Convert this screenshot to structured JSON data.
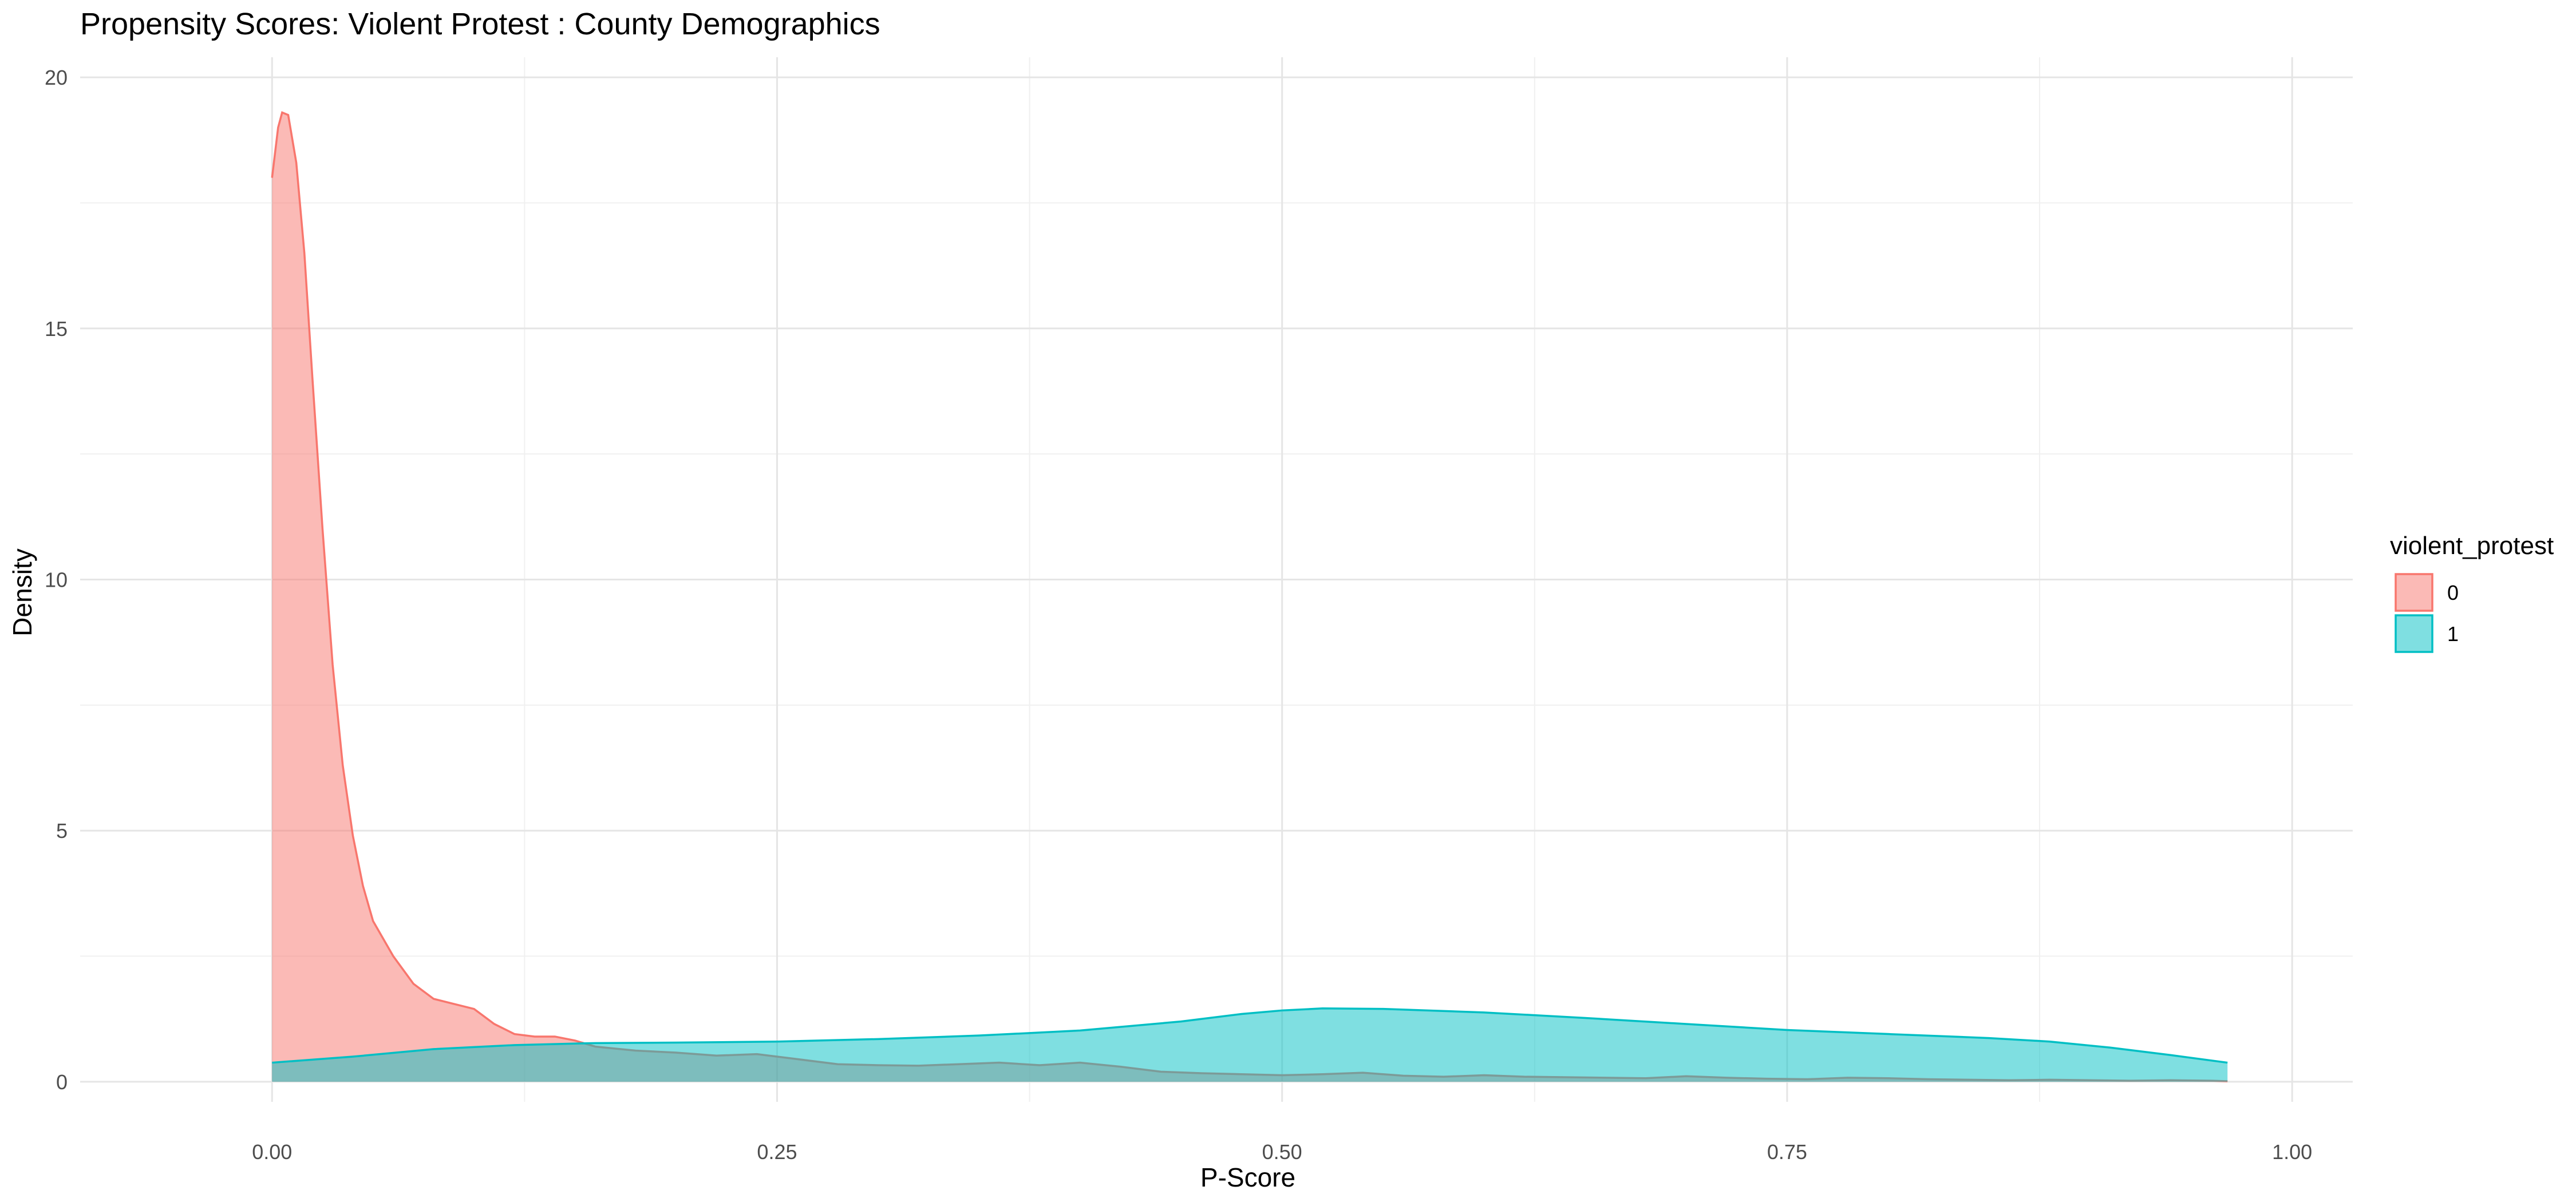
{
  "chart_data": {
    "type": "area",
    "title": "Propensity Scores: Violent Protest : County Demographics",
    "xlabel": "P-Score",
    "ylabel": "Density",
    "xlim": [
      -0.095,
      1.03
    ],
    "ylim": [
      -0.4,
      20.4
    ],
    "x_ticks": [
      0.0,
      0.25,
      0.5,
      0.75,
      1.0
    ],
    "x_tick_labels": [
      "0.00",
      "0.25",
      "0.50",
      "0.75",
      "1.00"
    ],
    "y_ticks": [
      0,
      5,
      10,
      15,
      20
    ],
    "y_tick_labels": [
      "0",
      "5",
      "10",
      "15",
      "20"
    ],
    "grid": true,
    "legend": {
      "title": "violent_protest",
      "position": "right"
    },
    "series": [
      {
        "name": "0",
        "fill": "#F8766D",
        "points": [
          [
            0.0,
            18.0
          ],
          [
            0.003,
            19.0
          ],
          [
            0.005,
            19.3
          ],
          [
            0.008,
            19.25
          ],
          [
            0.012,
            18.3
          ],
          [
            0.016,
            16.5
          ],
          [
            0.02,
            14.0
          ],
          [
            0.025,
            11.0
          ],
          [
            0.03,
            8.3
          ],
          [
            0.035,
            6.3
          ],
          [
            0.04,
            4.9
          ],
          [
            0.045,
            3.9
          ],
          [
            0.05,
            3.2
          ],
          [
            0.06,
            2.5
          ],
          [
            0.07,
            1.95
          ],
          [
            0.08,
            1.65
          ],
          [
            0.09,
            1.55
          ],
          [
            0.1,
            1.45
          ],
          [
            0.11,
            1.15
          ],
          [
            0.12,
            0.95
          ],
          [
            0.13,
            0.9
          ],
          [
            0.14,
            0.9
          ],
          [
            0.15,
            0.82
          ],
          [
            0.16,
            0.7
          ],
          [
            0.18,
            0.62
          ],
          [
            0.2,
            0.58
          ],
          [
            0.22,
            0.52
          ],
          [
            0.24,
            0.55
          ],
          [
            0.26,
            0.45
          ],
          [
            0.28,
            0.35
          ],
          [
            0.3,
            0.33
          ],
          [
            0.32,
            0.32
          ],
          [
            0.34,
            0.35
          ],
          [
            0.36,
            0.38
          ],
          [
            0.38,
            0.33
          ],
          [
            0.4,
            0.38
          ],
          [
            0.42,
            0.3
          ],
          [
            0.44,
            0.2
          ],
          [
            0.46,
            0.17
          ],
          [
            0.48,
            0.15
          ],
          [
            0.5,
            0.13
          ],
          [
            0.52,
            0.15
          ],
          [
            0.54,
            0.18
          ],
          [
            0.56,
            0.12
          ],
          [
            0.58,
            0.1
          ],
          [
            0.6,
            0.13
          ],
          [
            0.62,
            0.1
          ],
          [
            0.64,
            0.09
          ],
          [
            0.66,
            0.08
          ],
          [
            0.68,
            0.07
          ],
          [
            0.7,
            0.11
          ],
          [
            0.72,
            0.08
          ],
          [
            0.74,
            0.06
          ],
          [
            0.76,
            0.05
          ],
          [
            0.78,
            0.08
          ],
          [
            0.8,
            0.07
          ],
          [
            0.82,
            0.05
          ],
          [
            0.84,
            0.04
          ],
          [
            0.86,
            0.03
          ],
          [
            0.88,
            0.04
          ],
          [
            0.9,
            0.03
          ],
          [
            0.92,
            0.02
          ],
          [
            0.94,
            0.03
          ],
          [
            0.96,
            0.02
          ],
          [
            0.968,
            0.01
          ]
        ]
      },
      {
        "name": "1",
        "fill": "#00BFC4",
        "points": [
          [
            0.0,
            0.38
          ],
          [
            0.04,
            0.5
          ],
          [
            0.08,
            0.65
          ],
          [
            0.12,
            0.73
          ],
          [
            0.16,
            0.77
          ],
          [
            0.2,
            0.78
          ],
          [
            0.25,
            0.8
          ],
          [
            0.3,
            0.85
          ],
          [
            0.35,
            0.92
          ],
          [
            0.4,
            1.02
          ],
          [
            0.45,
            1.2
          ],
          [
            0.48,
            1.35
          ],
          [
            0.5,
            1.42
          ],
          [
            0.52,
            1.46
          ],
          [
            0.55,
            1.45
          ],
          [
            0.6,
            1.38
          ],
          [
            0.65,
            1.27
          ],
          [
            0.7,
            1.15
          ],
          [
            0.75,
            1.03
          ],
          [
            0.8,
            0.95
          ],
          [
            0.85,
            0.87
          ],
          [
            0.88,
            0.8
          ],
          [
            0.91,
            0.68
          ],
          [
            0.94,
            0.53
          ],
          [
            0.968,
            0.38
          ]
        ]
      }
    ]
  }
}
